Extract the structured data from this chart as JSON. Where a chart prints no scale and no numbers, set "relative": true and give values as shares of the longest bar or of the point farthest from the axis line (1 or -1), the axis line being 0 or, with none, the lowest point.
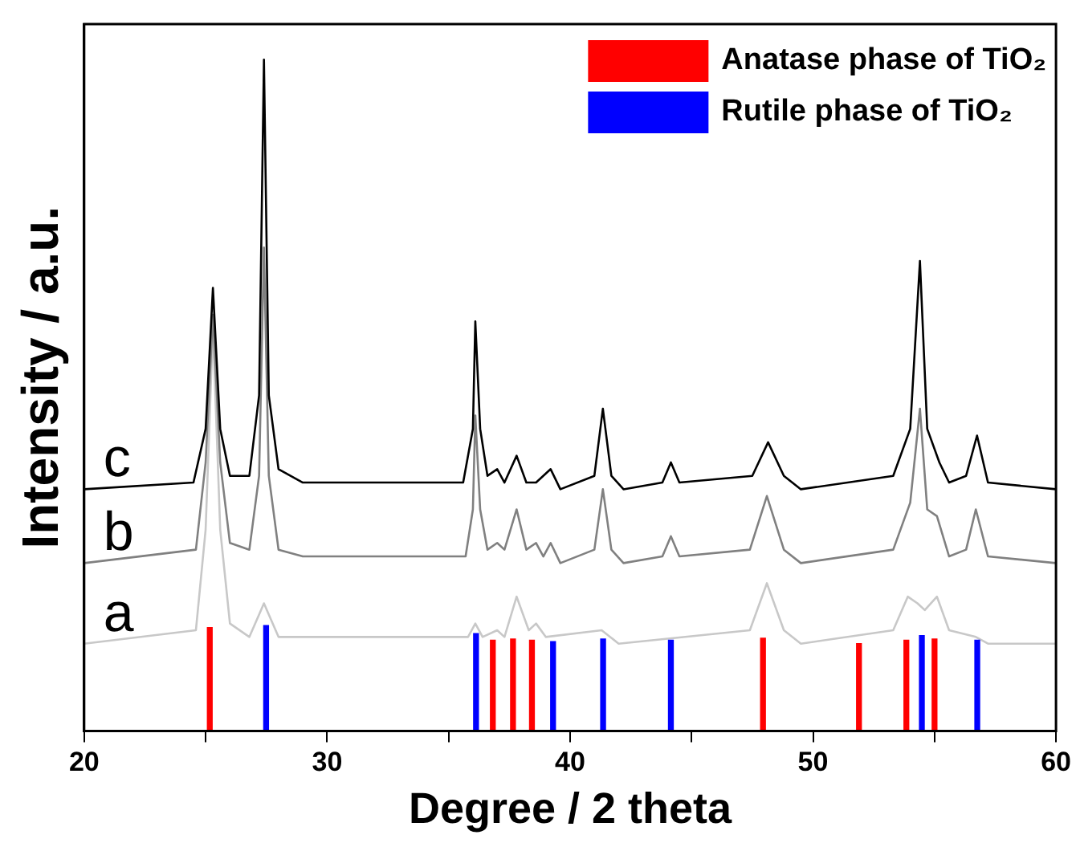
{
  "chart_data": {
    "type": "line",
    "xlabel": "Degree / 2 theta",
    "ylabel": "Intensity / a.u.",
    "relative": true,
    "legend": "top right",
    "marker": "none",
    "xlim": [
      20,
      60
    ],
    "xticks": [
      20,
      {
        "value": 25,
        "label": null
      },
      30,
      {
        "value": 35,
        "label": null
      },
      40,
      {
        "value": 45,
        "label": null
      },
      50,
      {
        "value": 55,
        "label": null
      },
      60
    ],
    "series": [
      {
        "name": "c",
        "color": "#000000",
        "x": [
          20,
          24.5,
          25.0,
          25.3,
          25.6,
          26.0,
          26.8,
          27.2,
          27.4,
          27.6,
          28.0,
          29,
          35.6,
          36.0,
          36.1,
          36.3,
          36.6,
          37.0,
          37.3,
          37.8,
          38.2,
          38.6,
          39.2,
          39.6,
          41.0,
          41.35,
          41.7,
          42.2,
          43.8,
          44.15,
          44.5,
          47.5,
          48.15,
          48.8,
          49.5,
          53.3,
          54.0,
          54.4,
          54.7,
          55.2,
          55.6,
          56.3,
          56.75,
          57.2,
          60
        ],
        "values": [
          0.36,
          0.37,
          0.45,
          0.66,
          0.45,
          0.38,
          0.38,
          0.5,
          1.0,
          0.5,
          0.39,
          0.37,
          0.37,
          0.45,
          0.61,
          0.45,
          0.38,
          0.39,
          0.37,
          0.41,
          0.37,
          0.37,
          0.39,
          0.36,
          0.38,
          0.48,
          0.38,
          0.36,
          0.37,
          0.4,
          0.37,
          0.38,
          0.43,
          0.38,
          0.36,
          0.38,
          0.45,
          0.7,
          0.45,
          0.4,
          0.37,
          0.38,
          0.44,
          0.37,
          0.36
        ]
      },
      {
        "name": "b",
        "color": "#808080",
        "x": [
          20,
          24.6,
          25.0,
          25.3,
          25.6,
          26.0,
          26.8,
          27.2,
          27.4,
          27.6,
          28.0,
          29,
          35.7,
          36.0,
          36.1,
          36.3,
          36.6,
          37.0,
          37.3,
          37.8,
          38.2,
          38.6,
          38.9,
          39.2,
          39.6,
          41.0,
          41.35,
          41.7,
          42.2,
          43.8,
          44.15,
          44.5,
          47.4,
          48.1,
          48.8,
          49.5,
          53.3,
          54.0,
          54.4,
          54.7,
          55.1,
          55.6,
          56.3,
          56.7,
          57.2,
          60
        ],
        "values": [
          0.25,
          0.27,
          0.4,
          0.62,
          0.4,
          0.28,
          0.27,
          0.38,
          0.72,
          0.38,
          0.27,
          0.26,
          0.26,
          0.33,
          0.47,
          0.33,
          0.27,
          0.28,
          0.27,
          0.33,
          0.27,
          0.28,
          0.26,
          0.28,
          0.25,
          0.27,
          0.36,
          0.27,
          0.25,
          0.26,
          0.29,
          0.26,
          0.27,
          0.35,
          0.27,
          0.25,
          0.27,
          0.34,
          0.48,
          0.33,
          0.32,
          0.26,
          0.27,
          0.33,
          0.26,
          0.25
        ]
      },
      {
        "name": "a",
        "color": "#c8c8c8",
        "x": [
          20,
          24.6,
          25.0,
          25.3,
          25.6,
          26.0,
          26.8,
          27.4,
          28.0,
          35.8,
          36.1,
          36.4,
          37.0,
          37.3,
          37.8,
          38.3,
          38.6,
          39.0,
          41.3,
          42,
          47.4,
          48.1,
          48.8,
          49.5,
          53.3,
          53.9,
          54.3,
          54.6,
          55.1,
          55.6,
          56.7,
          57.2,
          60
        ],
        "values": [
          0.13,
          0.15,
          0.3,
          0.6,
          0.3,
          0.16,
          0.14,
          0.19,
          0.14,
          0.14,
          0.16,
          0.14,
          0.15,
          0.14,
          0.2,
          0.15,
          0.16,
          0.14,
          0.15,
          0.13,
          0.15,
          0.22,
          0.15,
          0.13,
          0.15,
          0.2,
          0.19,
          0.18,
          0.2,
          0.15,
          0.14,
          0.13,
          0.13
        ]
      },
      {
        "name": "Anatase phase of TiO₂",
        "type": "bar",
        "color": "#ff0000",
        "x": [
          25.27,
          36.92,
          37.75,
          38.53,
          48.04,
          51.99,
          53.94,
          55.1
        ],
        "values": [
          0.154,
          0.135,
          0.137,
          0.135,
          0.138,
          0.13,
          0.135,
          0.137
        ]
      },
      {
        "name": "Rutile phase of TiO₂",
        "type": "bar",
        "color": "#0000ff",
        "x": [
          27.39,
          36.03,
          39.2,
          41.26,
          44.05,
          54.38,
          56.66
        ],
        "values": [
          0.157,
          0.145,
          0.133,
          0.137,
          0.135,
          0.142,
          0.135
        ]
      }
    ]
  }
}
